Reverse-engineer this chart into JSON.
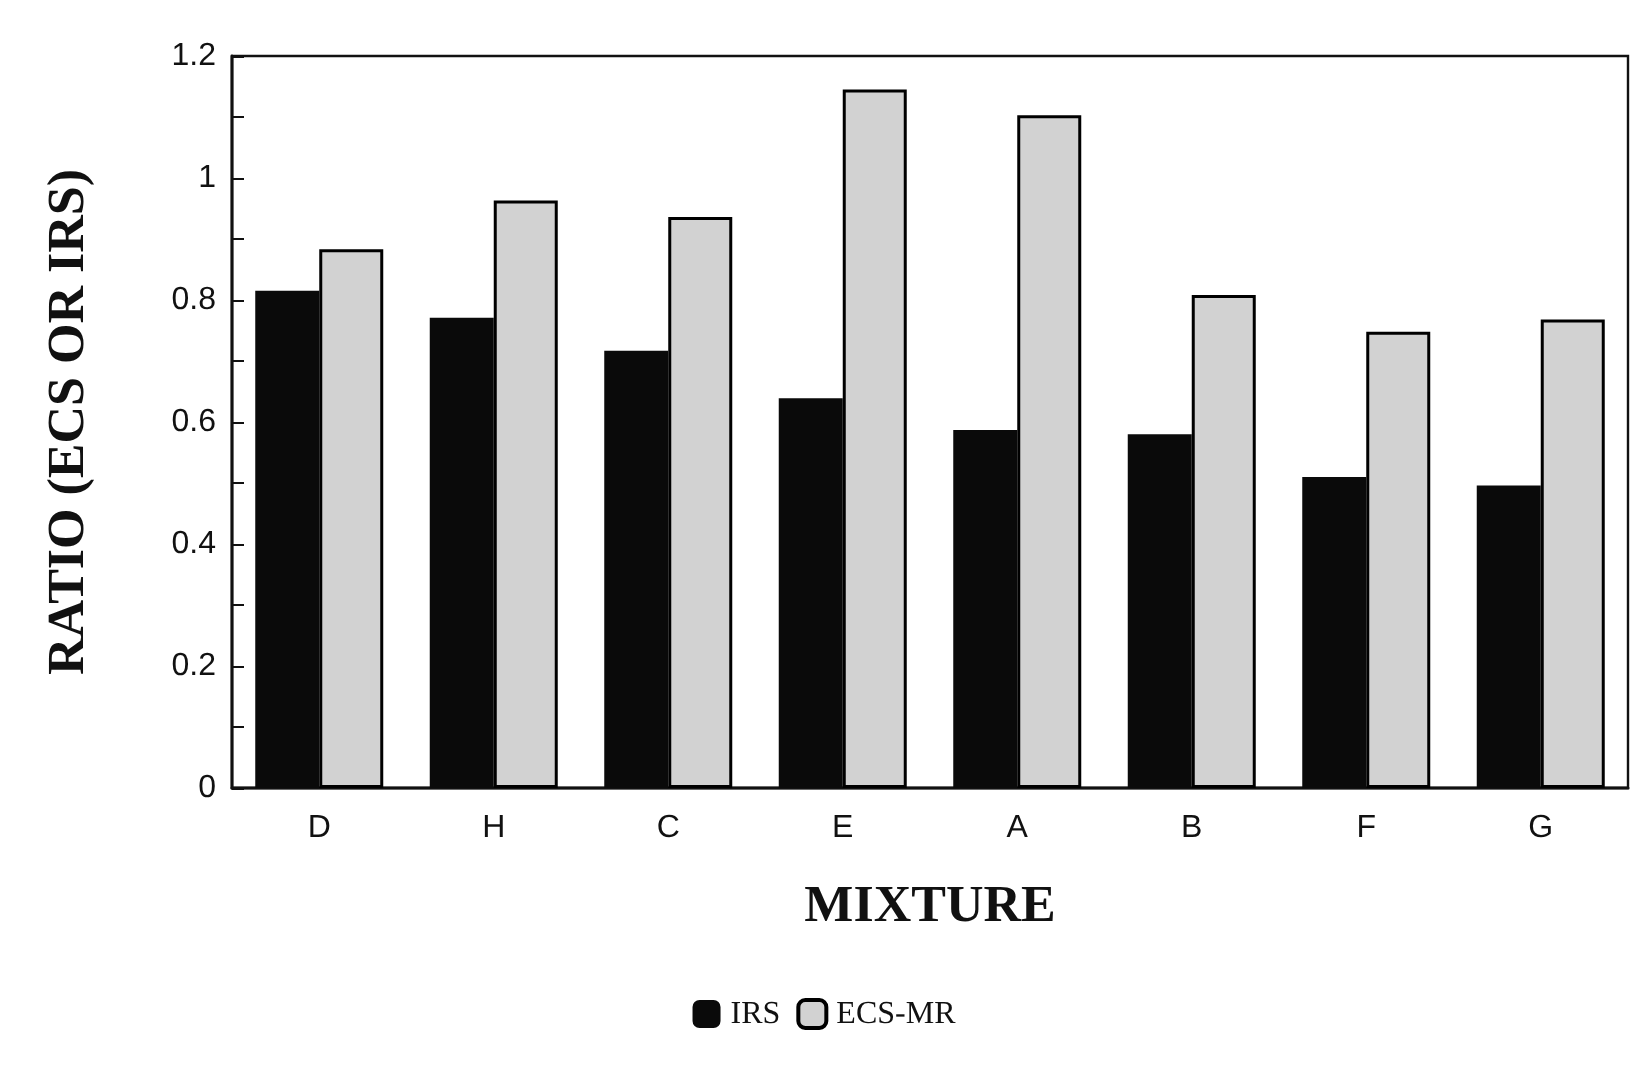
{
  "chart_data": {
    "type": "bar",
    "xlabel": "MIXTURE",
    "ylabel": "RATIO (ECS OR IRS)",
    "categories": [
      "D",
      "H",
      "C",
      "E",
      "A",
      "B",
      "F",
      "G"
    ],
    "series": [
      {
        "name": "IRS",
        "color": "#0a0a0a",
        "values": [
          0.815,
          0.771,
          0.717,
          0.639,
          0.587,
          0.58,
          0.51,
          0.496
        ]
      },
      {
        "name": "ECS-MR",
        "color": "#d2d2d2",
        "values": [
          0.883,
          0.963,
          0.936,
          1.145,
          1.103,
          0.808,
          0.748,
          0.768
        ]
      }
    ],
    "ylim": [
      0,
      1.2
    ],
    "yticks": [
      0,
      {
        "value": 0.1,
        "label": null
      },
      0.2,
      {
        "value": 0.3,
        "label": null
      },
      0.4,
      {
        "value": 0.5,
        "label": null
      },
      0.6,
      {
        "value": 0.7,
        "label": null
      },
      0.8,
      {
        "value": 0.9,
        "label": null
      },
      1,
      {
        "value": 1.1,
        "label": null
      },
      1.2
    ],
    "grid": false,
    "legend": "bottom"
  }
}
